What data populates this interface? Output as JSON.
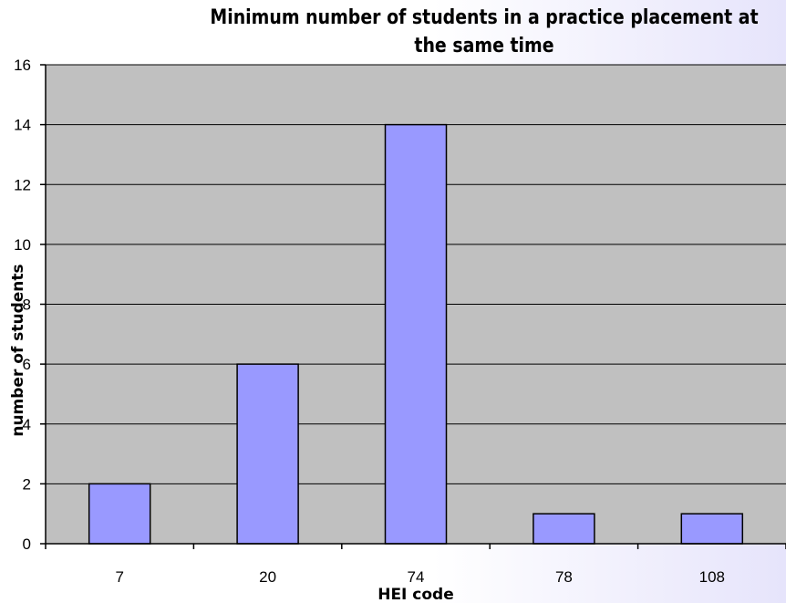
{
  "chart_data": {
    "type": "bar",
    "title": "Minimum number of students in a practice placement at the same time",
    "xlabel": "HEI code",
    "ylabel": "number of students",
    "categories": [
      "7",
      "20",
      "74",
      "78",
      "108"
    ],
    "values": [
      2,
      6,
      14,
      1,
      1
    ],
    "ylim": [
      0,
      16
    ],
    "yticks": [
      0,
      2,
      4,
      6,
      8,
      10,
      12,
      14,
      16
    ],
    "grid": true,
    "legend": "none",
    "colors": {
      "bar_fill": "#9999ff",
      "bar_stroke": "#000000",
      "plot_background": "#c0c0c0",
      "gridline": "#000000"
    }
  }
}
